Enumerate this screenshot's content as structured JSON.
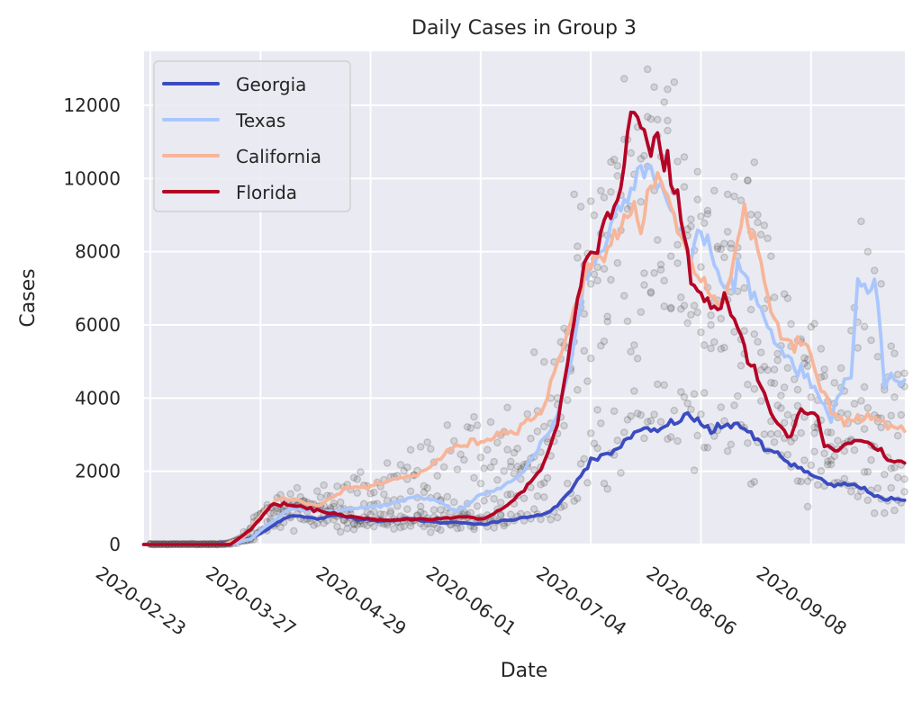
{
  "chart_data": {
    "type": "line",
    "title": "Daily Cases in Group 3",
    "xlabel": "Date",
    "ylabel": "Cases",
    "x_start_date": "2020-02-23",
    "x_unit": "days since 2020-02-23",
    "xlim": [
      -2,
      226
    ],
    "ylim": [
      0,
      13500
    ],
    "grid": true,
    "legend_position": "top-left",
    "x_ticks": [
      {
        "day": 0,
        "label": "2020-02-23"
      },
      {
        "day": 33,
        "label": "2020-03-27"
      },
      {
        "day": 66,
        "label": "2020-04-29"
      },
      {
        "day": 99,
        "label": "2020-06-01"
      },
      {
        "day": 132,
        "label": "2020-07-04"
      },
      {
        "day": 165,
        "label": "2020-08-06"
      },
      {
        "day": 198,
        "label": "2020-09-08"
      }
    ],
    "y_ticks": [
      {
        "value": 0,
        "label": "0"
      },
      {
        "value": 2000,
        "label": "2000"
      },
      {
        "value": 4000,
        "label": "4000"
      },
      {
        "value": 6000,
        "label": "6000"
      },
      {
        "value": 8000,
        "label": "8000"
      },
      {
        "value": 10000,
        "label": "10000"
      },
      {
        "value": 12000,
        "label": "12000"
      }
    ],
    "series": [
      {
        "name": "Georgia",
        "color": "#3b4cc0",
        "points": [
          [
            -2,
            0
          ],
          [
            20,
            0
          ],
          [
            28,
            100
          ],
          [
            33,
            300
          ],
          [
            38,
            600
          ],
          [
            42,
            800
          ],
          [
            46,
            750
          ],
          [
            50,
            700
          ],
          [
            56,
            800
          ],
          [
            62,
            700
          ],
          [
            70,
            650
          ],
          [
            78,
            700
          ],
          [
            86,
            600
          ],
          [
            94,
            600
          ],
          [
            100,
            550
          ],
          [
            106,
            650
          ],
          [
            114,
            750
          ],
          [
            120,
            900
          ],
          [
            126,
            1500
          ],
          [
            132,
            2300
          ],
          [
            136,
            2400
          ],
          [
            140,
            2600
          ],
          [
            144,
            3000
          ],
          [
            148,
            3100
          ],
          [
            152,
            3100
          ],
          [
            156,
            3300
          ],
          [
            160,
            3500
          ],
          [
            164,
            3400
          ],
          [
            168,
            3100
          ],
          [
            172,
            3200
          ],
          [
            176,
            3350
          ],
          [
            180,
            3000
          ],
          [
            184,
            2600
          ],
          [
            188,
            2500
          ],
          [
            192,
            2200
          ],
          [
            196,
            2000
          ],
          [
            200,
            1800
          ],
          [
            204,
            1600
          ],
          [
            208,
            1650
          ],
          [
            212,
            1600
          ],
          [
            216,
            1400
          ],
          [
            220,
            1250
          ],
          [
            226,
            1200
          ]
        ]
      },
      {
        "name": "Texas",
        "color": "#aac7fd",
        "points": [
          [
            -2,
            0
          ],
          [
            24,
            0
          ],
          [
            30,
            150
          ],
          [
            36,
            600
          ],
          [
            42,
            1000
          ],
          [
            46,
            950
          ],
          [
            52,
            900
          ],
          [
            58,
            950
          ],
          [
            64,
            1000
          ],
          [
            72,
            1100
          ],
          [
            80,
            1300
          ],
          [
            86,
            1200
          ],
          [
            92,
            900
          ],
          [
            98,
            1300
          ],
          [
            104,
            1500
          ],
          [
            112,
            2000
          ],
          [
            118,
            2900
          ],
          [
            122,
            3500
          ],
          [
            126,
            5000
          ],
          [
            130,
            7200
          ],
          [
            134,
            7800
          ],
          [
            138,
            8700
          ],
          [
            142,
            9600
          ],
          [
            146,
            10200
          ],
          [
            150,
            10400
          ],
          [
            154,
            9600
          ],
          [
            158,
            8600
          ],
          [
            162,
            7800
          ],
          [
            164,
            8700
          ],
          [
            168,
            8000
          ],
          [
            172,
            6900
          ],
          [
            176,
            7600
          ],
          [
            180,
            7000
          ],
          [
            186,
            5800
          ],
          [
            192,
            5000
          ],
          [
            198,
            4400
          ],
          [
            204,
            3500
          ],
          [
            208,
            4500
          ],
          [
            210,
            4600
          ],
          [
            212,
            7100
          ],
          [
            214,
            6800
          ],
          [
            218,
            6900
          ],
          [
            220,
            4300
          ],
          [
            222,
            4700
          ],
          [
            224,
            4400
          ],
          [
            226,
            4300
          ]
        ]
      },
      {
        "name": "California",
        "color": "#f7b599",
        "points": [
          [
            -2,
            0
          ],
          [
            22,
            0
          ],
          [
            28,
            200
          ],
          [
            34,
            900
          ],
          [
            38,
            1250
          ],
          [
            44,
            1200
          ],
          [
            50,
            1050
          ],
          [
            56,
            1350
          ],
          [
            60,
            1600
          ],
          [
            66,
            1550
          ],
          [
            72,
            1750
          ],
          [
            80,
            1900
          ],
          [
            86,
            2300
          ],
          [
            92,
            2700
          ],
          [
            98,
            2800
          ],
          [
            104,
            3000
          ],
          [
            110,
            3200
          ],
          [
            118,
            3700
          ],
          [
            124,
            5600
          ],
          [
            130,
            7300
          ],
          [
            134,
            7800
          ],
          [
            138,
            8300
          ],
          [
            142,
            8700
          ],
          [
            148,
            9200
          ],
          [
            152,
            10000
          ],
          [
            156,
            9200
          ],
          [
            160,
            8200
          ],
          [
            164,
            7400
          ],
          [
            168,
            6800
          ],
          [
            172,
            6500
          ],
          [
            176,
            8400
          ],
          [
            178,
            9300
          ],
          [
            182,
            8000
          ],
          [
            186,
            6400
          ],
          [
            190,
            5700
          ],
          [
            196,
            5400
          ],
          [
            200,
            4600
          ],
          [
            204,
            3700
          ],
          [
            208,
            3300
          ],
          [
            212,
            3500
          ],
          [
            218,
            3400
          ],
          [
            222,
            3200
          ],
          [
            226,
            3200
          ]
        ]
      },
      {
        "name": "Florida",
        "color": "#b40426",
        "points": [
          [
            -2,
            0
          ],
          [
            24,
            0
          ],
          [
            30,
            400
          ],
          [
            36,
            1050
          ],
          [
            40,
            1100
          ],
          [
            46,
            1000
          ],
          [
            52,
            900
          ],
          [
            58,
            800
          ],
          [
            64,
            700
          ],
          [
            72,
            650
          ],
          [
            78,
            700
          ],
          [
            86,
            700
          ],
          [
            94,
            750
          ],
          [
            100,
            700
          ],
          [
            106,
            1000
          ],
          [
            112,
            1500
          ],
          [
            118,
            2200
          ],
          [
            122,
            3300
          ],
          [
            126,
            5500
          ],
          [
            130,
            7700
          ],
          [
            134,
            8300
          ],
          [
            138,
            9300
          ],
          [
            140,
            9200
          ],
          [
            144,
            11800
          ],
          [
            146,
            11900
          ],
          [
            150,
            10800
          ],
          [
            152,
            11000
          ],
          [
            154,
            10300
          ],
          [
            158,
            9500
          ],
          [
            162,
            7300
          ],
          [
            166,
            6700
          ],
          [
            170,
            6400
          ],
          [
            172,
            6900
          ],
          [
            176,
            5800
          ],
          [
            180,
            4900
          ],
          [
            184,
            4100
          ],
          [
            188,
            3200
          ],
          [
            192,
            2900
          ],
          [
            194,
            3600
          ],
          [
            198,
            3600
          ],
          [
            200,
            3500
          ],
          [
            202,
            2700
          ],
          [
            206,
            2500
          ],
          [
            210,
            2800
          ],
          [
            214,
            2800
          ],
          [
            218,
            2600
          ],
          [
            222,
            2300
          ],
          [
            226,
            2200
          ]
        ]
      }
    ],
    "scatter": {
      "name": "daily reported cases (all states)",
      "color": "#555555",
      "note": "raw daily observations shown as translucent gray dots scattered around each series"
    }
  }
}
